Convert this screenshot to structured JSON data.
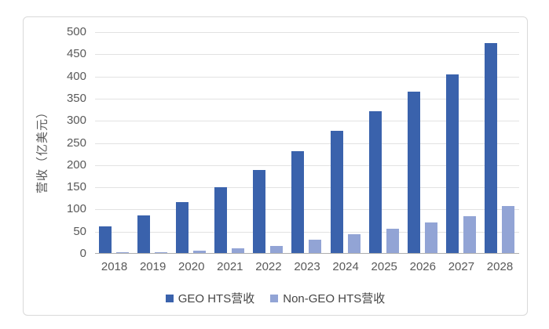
{
  "chart_data": {
    "type": "bar",
    "title": "",
    "xlabel": "",
    "ylabel": "营收（亿美元）",
    "ylim": [
      0,
      500
    ],
    "ytick_step": 50,
    "yticks": [
      "0",
      "50",
      "100",
      "150",
      "200",
      "250",
      "300",
      "350",
      "400",
      "450",
      "500"
    ],
    "grid": true,
    "legend_position": "bottom",
    "categories": [
      "2018",
      "2019",
      "2020",
      "2021",
      "2022",
      "2023",
      "2024",
      "2025",
      "2026",
      "2027",
      "2028"
    ],
    "series": [
      {
        "name": "GEO HTS营收",
        "color": "#3a62ac",
        "values": [
          62,
          86,
          116,
          150,
          189,
          232,
          277,
          322,
          365,
          405,
          475
        ]
      },
      {
        "name": "Non-GEO HTS营收",
        "color": "#92a4d5",
        "values": [
          3,
          4,
          7,
          12,
          18,
          31,
          44,
          56,
          70,
          85,
          108
        ]
      }
    ]
  },
  "colors": {
    "frame_border": "#d9d9d9",
    "gridline": "#e2e2e2",
    "axis_line": "#aeaeae",
    "tick_text": "#595959",
    "legend_text": "#454545",
    "background": "#ffffff"
  }
}
